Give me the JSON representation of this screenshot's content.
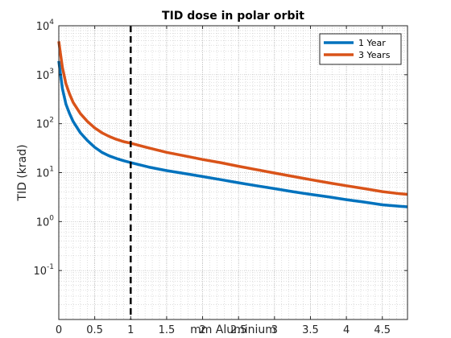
{
  "chart_data": {
    "type": "line",
    "title": "TID dose in polar orbit",
    "xlabel": "mm Aluminium",
    "ylabel": "TID (krad)",
    "xlim": [
      0,
      4.85
    ],
    "ylim": [
      0.01,
      10000
    ],
    "yscale": "log",
    "x_ticks": [
      0,
      0.5,
      1,
      1.5,
      2,
      2.5,
      3,
      3.5,
      4,
      4.5
    ],
    "x_tick_labels": [
      "0",
      "0.5",
      "1",
      "1.5",
      "2",
      "2.5",
      "3",
      "3.5",
      "4",
      "4.5"
    ],
    "y_ticks": [
      0.1,
      1,
      10,
      100,
      1000,
      10000
    ],
    "y_tick_labels": [
      {
        "base": "10",
        "exp": "-1"
      },
      {
        "base": "10",
        "exp": "0"
      },
      {
        "base": "10",
        "exp": "1"
      },
      {
        "base": "10",
        "exp": "2"
      },
      {
        "base": "10",
        "exp": "3"
      },
      {
        "base": "10",
        "exp": "4"
      }
    ],
    "grid": true,
    "minor_grid": true,
    "legend_position": "top-right",
    "reference_line": {
      "x": 1,
      "style": "dashed",
      "color": "#000000"
    },
    "series": [
      {
        "name": "1 Year",
        "color": "#0072bd",
        "x": [
          0,
          0.025,
          0.05,
          0.1,
          0.15,
          0.2,
          0.3,
          0.4,
          0.5,
          0.6,
          0.7,
          0.8,
          0.9,
          1.0,
          1.25,
          1.5,
          1.75,
          2.0,
          2.25,
          2.5,
          2.75,
          3.0,
          3.25,
          3.5,
          3.75,
          4.0,
          4.25,
          4.5,
          4.75,
          4.85
        ],
        "y": [
          1900,
          1000,
          520,
          250,
          160,
          110,
          65,
          45,
          33,
          26,
          22,
          19.5,
          17.5,
          16,
          13,
          11,
          9.6,
          8.3,
          7.2,
          6.2,
          5.4,
          4.7,
          4.1,
          3.6,
          3.2,
          2.8,
          2.5,
          2.2,
          2.05,
          2.0
        ]
      },
      {
        "name": "3 Years",
        "color": "#d95319",
        "x": [
          0,
          0.025,
          0.05,
          0.1,
          0.15,
          0.2,
          0.3,
          0.4,
          0.5,
          0.6,
          0.7,
          0.8,
          0.9,
          1.0,
          1.25,
          1.5,
          1.75,
          2.0,
          2.25,
          2.5,
          2.75,
          3.0,
          3.25,
          3.5,
          3.75,
          4.0,
          4.25,
          4.5,
          4.75,
          4.85
        ],
        "y": [
          4800,
          2600,
          1400,
          650,
          400,
          270,
          160,
          110,
          82,
          65,
          55,
          48,
          43,
          40,
          32,
          26,
          22,
          18.5,
          16,
          13.5,
          11.5,
          9.8,
          8.4,
          7.2,
          6.2,
          5.4,
          4.7,
          4.1,
          3.7,
          3.6
        ]
      }
    ]
  }
}
